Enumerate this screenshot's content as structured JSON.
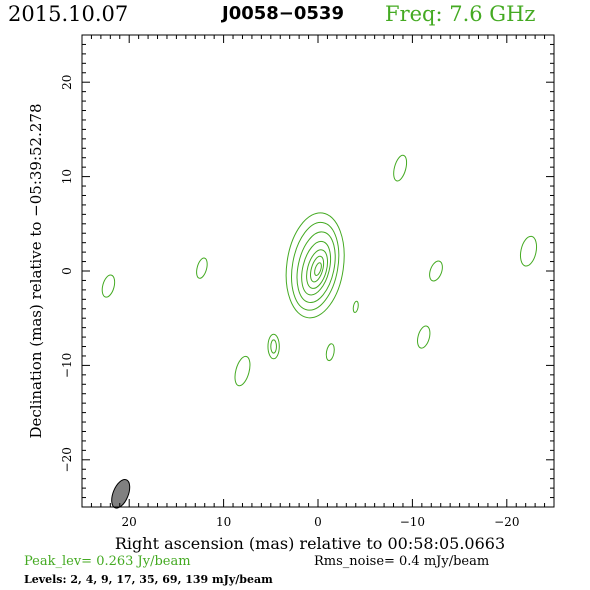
{
  "header": {
    "date": "2015.10.07",
    "source": "J0058−0539",
    "freq": "Freq: 7.6 GHz"
  },
  "footer": {
    "peak": "Peak_lev=  0.263 Jy/beam",
    "rms": "Rms_noise=  0.4 mJy/beam",
    "levels": "Levels:   2,    4,    9,   17,   35,   69,  139 mJy/beam"
  },
  "colors": {
    "contour": "#44aa22",
    "beam_fill": "#808080",
    "axes": "#000000"
  },
  "chart_data": {
    "type": "contour",
    "title": "J0058−0539",
    "xlabel": "Right ascension (mas) relative to 00:58:05.0663",
    "ylabel": "Declination (mas) relative to −05:39:52.278",
    "xlim": [
      25,
      -25
    ],
    "ylim": [
      -25,
      25
    ],
    "xticks": [
      {
        "value": 20,
        "label": "20"
      },
      {
        "value": 10,
        "label": "10"
      },
      {
        "value": 0,
        "label": "0"
      },
      {
        "value": -10,
        "label": "−10"
      },
      {
        "value": -20,
        "label": "−20"
      }
    ],
    "yticks": [
      {
        "value": 20,
        "label": "20"
      },
      {
        "value": 10,
        "label": "10"
      },
      {
        "value": 0,
        "label": "0"
      },
      {
        "value": -10,
        "label": "−10"
      },
      {
        "value": -20,
        "label": "−20"
      }
    ],
    "levels_mJy": [
      2,
      4,
      9,
      17,
      35,
      69,
      139
    ],
    "core_contours": [
      {
        "cx": 0.3,
        "cy": 0.6,
        "rx": 3.0,
        "ry": 5.6,
        "angle": 8
      },
      {
        "cx": 0.3,
        "cy": 0.5,
        "rx": 2.4,
        "ry": 4.7,
        "angle": 10
      },
      {
        "cx": 0.2,
        "cy": 0.4,
        "rx": 1.9,
        "ry": 3.8,
        "angle": 12
      },
      {
        "cx": 0.2,
        "cy": 0.3,
        "rx": 1.4,
        "ry": 2.9,
        "angle": 14
      },
      {
        "cx": 0.1,
        "cy": 0.2,
        "rx": 1.0,
        "ry": 2.1,
        "angle": 15
      },
      {
        "cx": 0.1,
        "cy": 0.2,
        "rx": 0.6,
        "ry": 1.4,
        "angle": 16
      },
      {
        "cx": 0.0,
        "cy": 0.2,
        "rx": 0.3,
        "ry": 0.7,
        "angle": 18
      }
    ],
    "islands": [
      {
        "cx": -8.7,
        "cy": 10.9,
        "rx": 0.6,
        "ry": 1.4,
        "angle": 15
      },
      {
        "cx": 12.3,
        "cy": 0.3,
        "rx": 0.5,
        "ry": 1.1,
        "angle": 15
      },
      {
        "cx": 22.2,
        "cy": -1.6,
        "rx": 0.6,
        "ry": 1.2,
        "angle": 15
      },
      {
        "cx": -12.5,
        "cy": 0.0,
        "rx": 0.6,
        "ry": 1.1,
        "angle": 20
      },
      {
        "cx": -22.3,
        "cy": 2.1,
        "rx": 0.8,
        "ry": 1.6,
        "angle": 12
      },
      {
        "cx": -4.0,
        "cy": -3.8,
        "rx": 0.25,
        "ry": 0.6,
        "angle": 10
      },
      {
        "cx": -11.2,
        "cy": -7.0,
        "rx": 0.6,
        "ry": 1.2,
        "angle": 15
      },
      {
        "cx": 4.7,
        "cy": -8.0,
        "rx": 0.6,
        "ry": 1.3,
        "angle": 0
      },
      {
        "cx": 4.7,
        "cy": -8.0,
        "rx": 0.3,
        "ry": 0.7,
        "angle": 0
      },
      {
        "cx": -1.3,
        "cy": -8.6,
        "rx": 0.4,
        "ry": 0.9,
        "angle": 10
      },
      {
        "cx": 8.0,
        "cy": -10.6,
        "rx": 0.7,
        "ry": 1.6,
        "angle": 15
      }
    ],
    "beam": {
      "cx": 20.9,
      "cy": -23.6,
      "rx": 0.8,
      "ry": 1.6,
      "angle": 22
    }
  }
}
